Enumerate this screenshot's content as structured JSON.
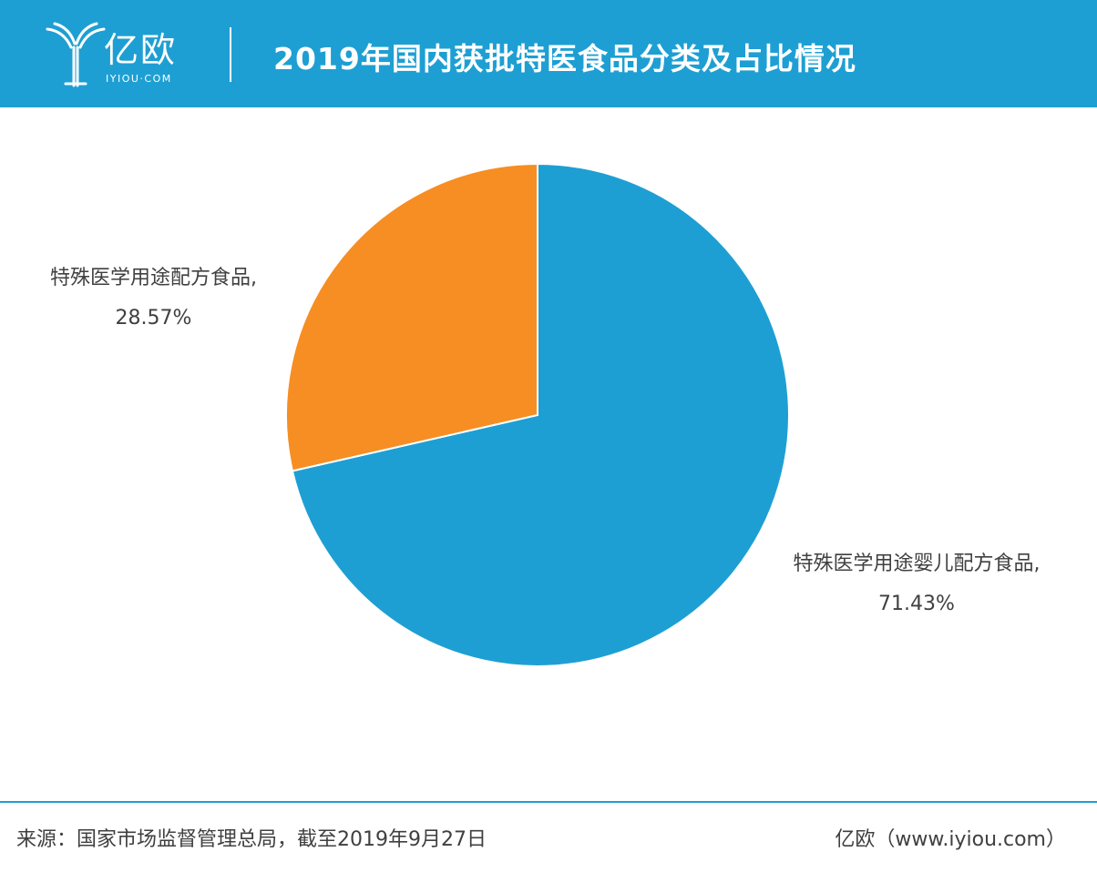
{
  "header": {
    "logo_text": "亿欧",
    "logo_sub": "IYIOU·COM",
    "title": "2019年国内获批特医食品分类及占比情况"
  },
  "colors": {
    "brand_blue": "#1e9fd3",
    "slice_orange": "#f68e23",
    "text_gray": "#404040"
  },
  "chart_data": {
    "type": "pie",
    "title": "2019年国内获批特医食品分类及占比情况",
    "slices": [
      {
        "label": "特殊医学用途配方食品,",
        "value_text": "28.57%",
        "value": 28.57,
        "color": "#f68e23"
      },
      {
        "label": "特殊医学用途婴儿配方食品,",
        "value_text": "71.43%",
        "value": 71.43,
        "color": "#1e9fd3"
      }
    ]
  },
  "footer": {
    "source": "来源：国家市场监督管理总局，截至2019年9月27日",
    "brand": "亿欧（www.iyiou.com）"
  }
}
